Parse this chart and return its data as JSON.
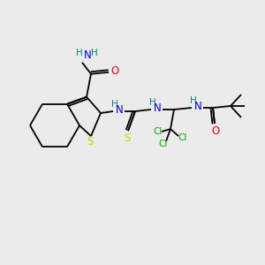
{
  "background_color": "#ebebeb",
  "atom_colors": {
    "N": "#008b8b",
    "O": "#ff0000",
    "S": "#cccc00",
    "Cl": "#00aa00",
    "H": "#008b8b",
    "N_blue": "#0000ff"
  },
  "bond_color": "#000000",
  "figsize": [
    3.0,
    3.0
  ],
  "dpi": 100,
  "scale": 1.0
}
